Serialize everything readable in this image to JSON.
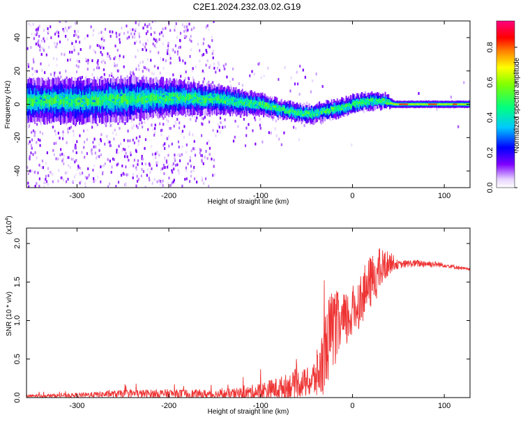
{
  "figure": {
    "title": "C2E1.2024.232.03.02.G19"
  },
  "chart_data": [
    {
      "type": "heatmap",
      "xlabel": "Height of straight line (km)",
      "ylabel": "Frequency (Hz)",
      "xlim": [
        -355,
        128
      ],
      "ylim": [
        -50,
        50
      ],
      "xticks": [
        -300,
        -200,
        -100,
        0,
        100
      ],
      "yticks": [
        -40,
        -20,
        0,
        20,
        40
      ],
      "colorbar": {
        "label": "Normalized spectral amplitude",
        "range": [
          0.0,
          0.95
        ],
        "ticks": [
          "0.0",
          "0.2",
          "0.4",
          "0.6",
          "0.8"
        ]
      },
      "ridge": {
        "description_points_height_km": [
          -355,
          -300,
          -250,
          -200,
          -150,
          -100,
          -80,
          -60,
          -45,
          -30,
          -10,
          0,
          20,
          35,
          45,
          128
        ],
        "center_frequency_hz": [
          2,
          2,
          3,
          4,
          3,
          0,
          -3,
          -5,
          -6,
          -4,
          -2,
          0,
          2,
          2,
          0,
          0
        ],
        "half_width_hz": [
          6,
          6,
          6,
          5,
          4,
          3,
          2.5,
          2.5,
          2.5,
          2.5,
          2.5,
          2.5,
          2.5,
          2,
          1,
          1
        ]
      }
    },
    {
      "type": "line",
      "xlabel": "Height of straight line (km)",
      "ylabel": "SNR (10 * v/v)",
      "y_multiplier_label": "(x10",
      "y_multiplier_exp": "4",
      "y_multiplier_close": ")",
      "xlim": [
        -355,
        128
      ],
      "ylim": [
        0,
        2.2
      ],
      "xticks": [
        -300,
        -200,
        -100,
        0,
        100
      ],
      "yticks": [
        "0.0",
        "0.5",
        "1.0",
        "1.5",
        "2.0"
      ],
      "color": "#ee3333",
      "series": [
        {
          "x": [
            -355,
            -300,
            -250,
            -200,
            -150,
            -120,
            -100,
            -80,
            -60,
            -45,
            -35,
            -30,
            -25,
            -20,
            -10,
            0,
            10,
            20,
            30,
            40,
            45,
            50,
            60,
            80,
            100,
            128
          ],
          "mean": [
            0.02,
            0.03,
            0.05,
            0.05,
            0.04,
            0.05,
            0.08,
            0.12,
            0.18,
            0.2,
            0.35,
            0.6,
            0.8,
            0.9,
            0.95,
            1.1,
            1.3,
            1.5,
            1.65,
            1.75,
            1.75,
            1.72,
            1.74,
            1.74,
            1.72,
            1.66
          ],
          "spread": [
            0.02,
            0.03,
            0.05,
            0.06,
            0.06,
            0.08,
            0.12,
            0.15,
            0.18,
            0.2,
            0.4,
            0.5,
            0.55,
            0.5,
            0.4,
            0.35,
            0.35,
            0.35,
            0.3,
            0.15,
            0.1,
            0.05,
            0.05,
            0.05,
            0.03,
            0.02
          ]
        }
      ]
    }
  ]
}
